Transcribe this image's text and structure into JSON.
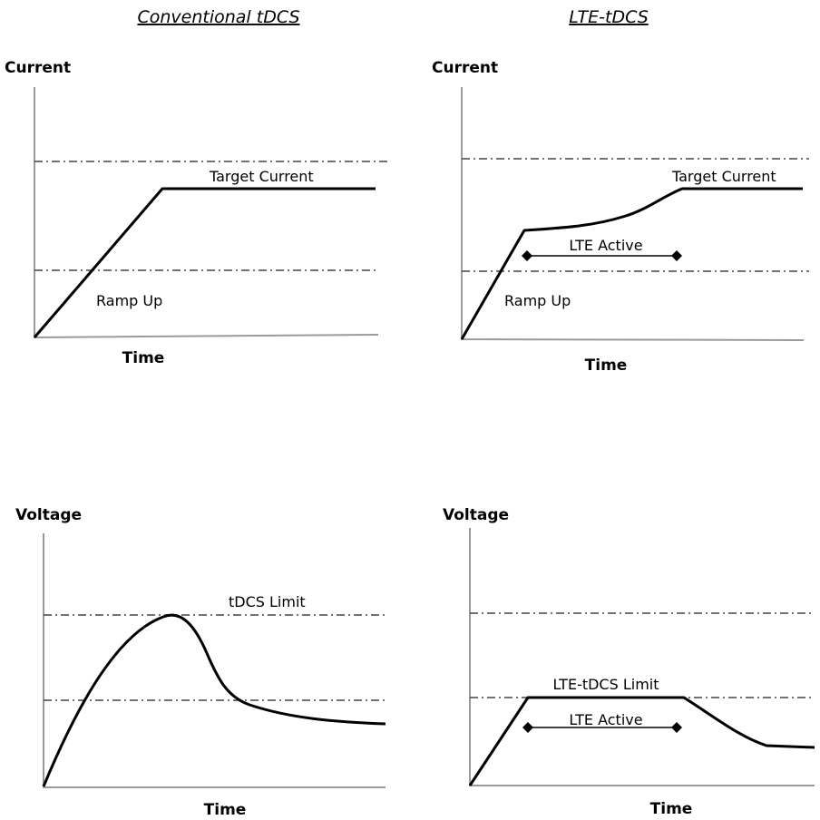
{
  "columns": {
    "left_title": "Conventional tDCS",
    "right_title": "LTE-tDCS"
  },
  "panels": {
    "current_conventional": {
      "y_label": "Current",
      "x_label": "Time",
      "target_label": "Target Current",
      "ramp_label": "Ramp Up"
    },
    "current_lte": {
      "y_label": "Current",
      "x_label": "Time",
      "target_label": "Target Current",
      "ramp_label": "Ramp Up",
      "active_label": "LTE Active"
    },
    "voltage_conventional": {
      "y_label": "Voltage",
      "x_label": "Time",
      "limit_label": "tDCS Limit"
    },
    "voltage_lte": {
      "y_label": "Voltage",
      "x_label": "Time",
      "limit_label": "LTE-tDCS Limit",
      "active_label": "LTE Active"
    }
  },
  "colors": {
    "curve": "#000000",
    "axis": "#9a9a9a",
    "reference_line": "#444444"
  }
}
